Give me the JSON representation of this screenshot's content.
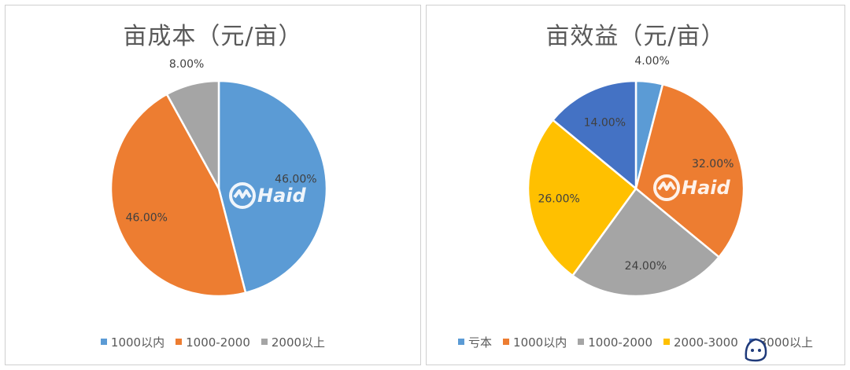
{
  "chart_data": [
    {
      "type": "pie",
      "title": "亩成本（元/亩）",
      "categories": [
        "1000以内",
        "1000-2000",
        "2000以上"
      ],
      "values": [
        46,
        46,
        8
      ],
      "labels": [
        "46.00%",
        "46.00%",
        "8.00%"
      ],
      "colors": [
        "#5b9bd5",
        "#ed7d31",
        "#a5a5a5"
      ],
      "legend_position": "bottom"
    },
    {
      "type": "pie",
      "title": "亩效益（元/亩）",
      "categories": [
        "亏本",
        "1000以内",
        "1000-2000",
        "2000-3000",
        "3000以上"
      ],
      "values": [
        4,
        32,
        24,
        26,
        14
      ],
      "labels": [
        "4.00%",
        "32.00%",
        "24.00%",
        "26.00%",
        "14.00%"
      ],
      "colors": [
        "#5b9bd5",
        "#ed7d31",
        "#a5a5a5",
        "#ffc000",
        "#4472c4"
      ],
      "legend_position": "bottom"
    }
  ],
  "watermark": {
    "text": "Haid"
  }
}
